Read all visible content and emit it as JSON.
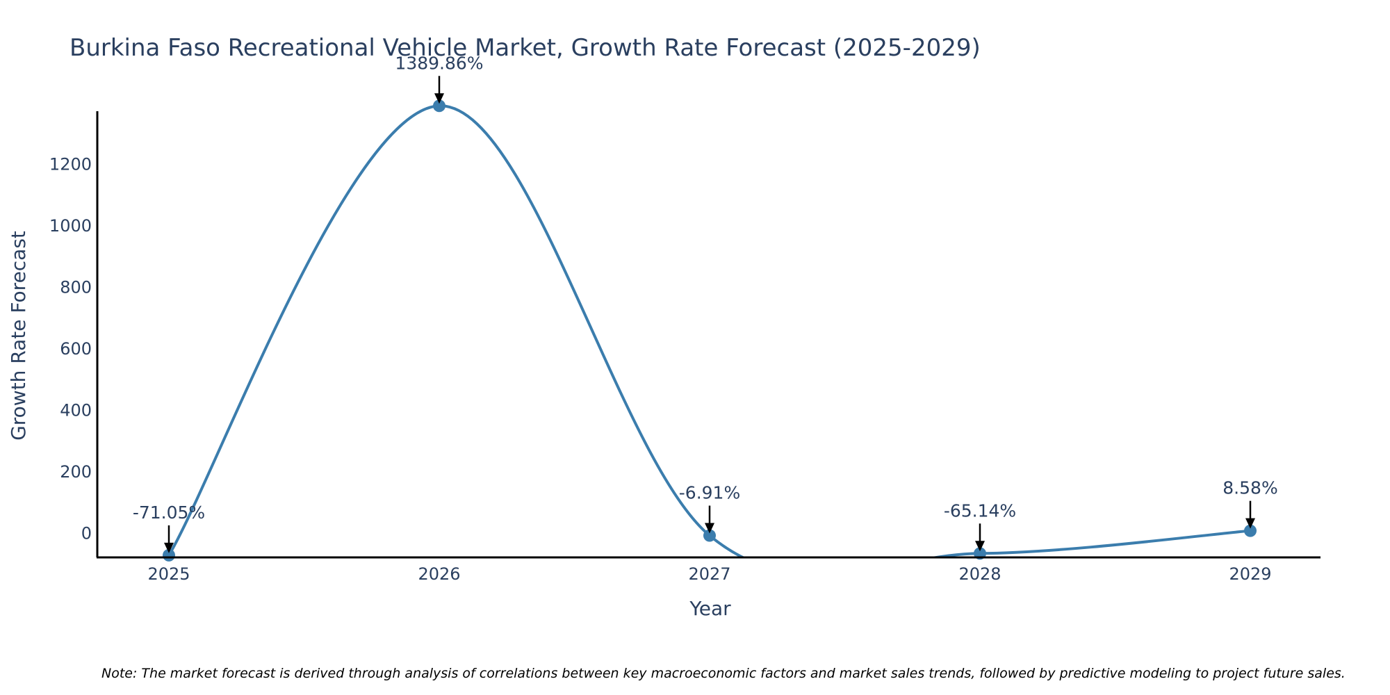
{
  "chart_data": {
    "type": "line",
    "title": "Burkina Faso Recreational Vehicle Market, Growth Rate Forecast (2025-2029)",
    "xlabel": "Year",
    "ylabel": "Growth Rate Forecast",
    "categories": [
      "2025",
      "2026",
      "2027",
      "2028",
      "2029"
    ],
    "values": [
      -71.05,
      1389.86,
      -6.91,
      -65.14,
      8.58
    ],
    "labels": [
      "-71.05%",
      "1389.86%",
      "-6.91%",
      "-65.14%",
      "8.58%"
    ],
    "yticks": [
      0,
      200,
      400,
      600,
      800,
      1000,
      1200
    ],
    "ylim": [
      -78,
      1395
    ],
    "grid": false,
    "line_color": "#3b7dad",
    "note": "Note: The market forecast is derived through analysis of correlations between key macroeconomic factors and market sales trends, followed by predictive modeling to project future sales."
  }
}
